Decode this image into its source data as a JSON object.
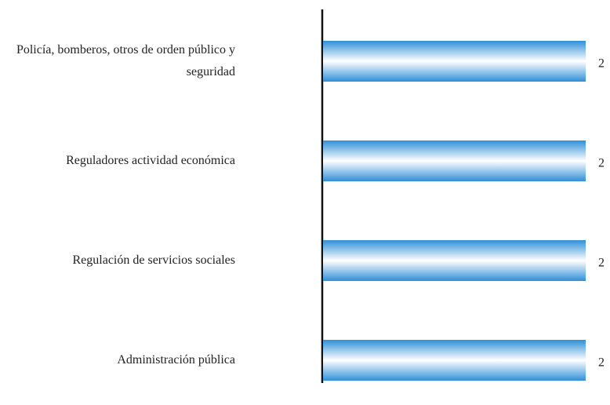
{
  "chart_data": {
    "type": "bar",
    "orientation": "horizontal",
    "categories": [
      "Policía, bomberos, otros de orden público y seguridad",
      "Reguladores actividad económica",
      "Regulación de servicios sociales",
      "Administración pública"
    ],
    "values": [
      2,
      2,
      2,
      2
    ],
    "color": "#2f8fd8"
  }
}
